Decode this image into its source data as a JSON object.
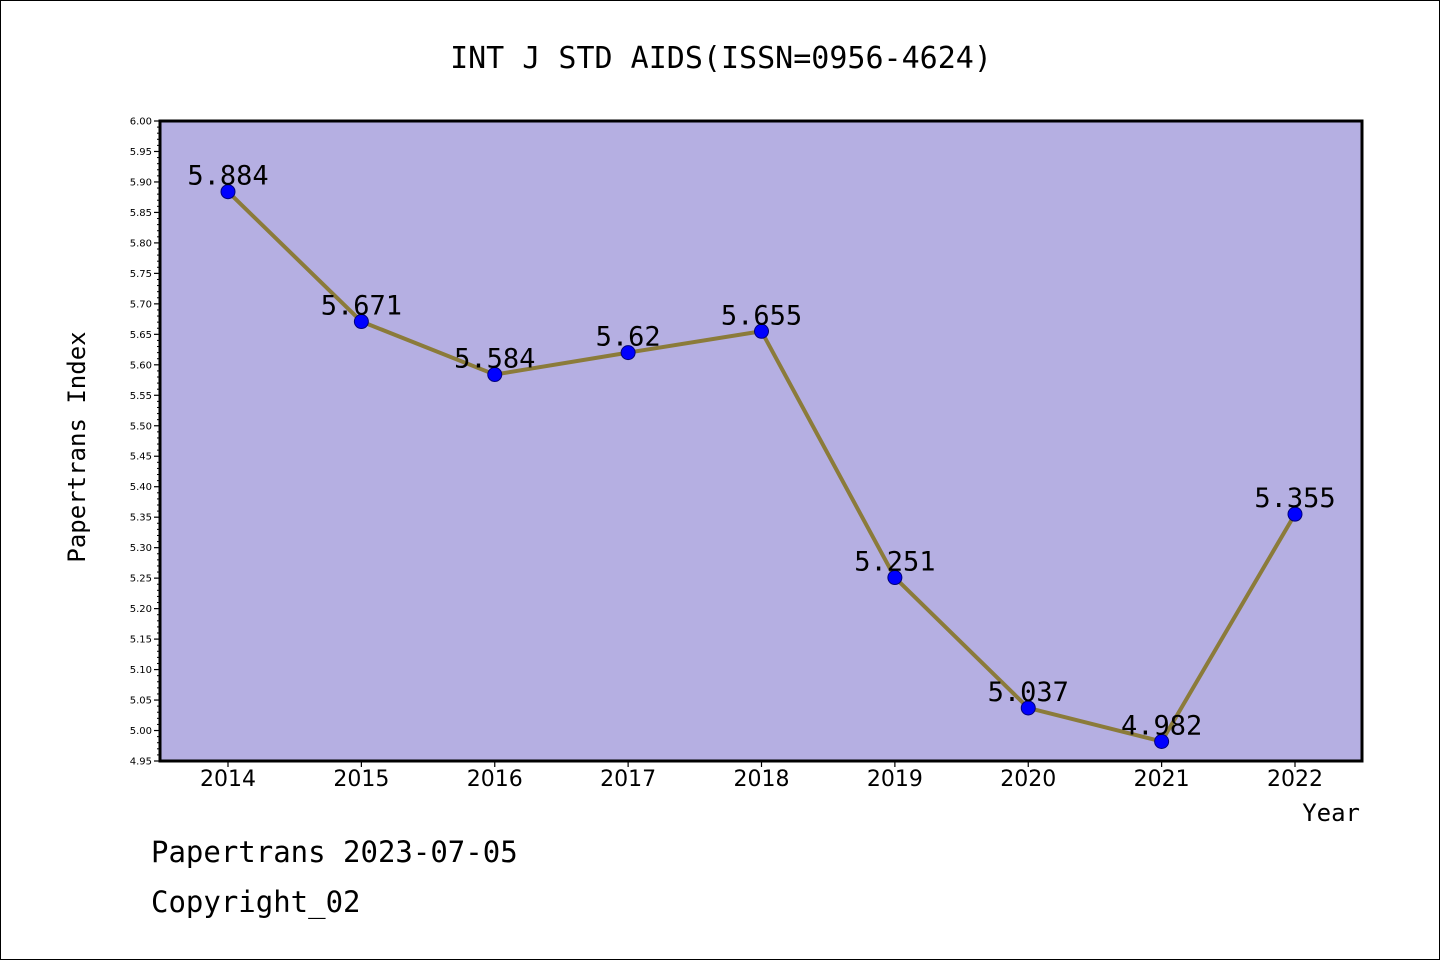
{
  "chart_data": {
    "type": "line",
    "title": "INT J STD AIDS(ISSN=0956-4624)",
    "xlabel": "Year",
    "ylabel": "Papertrans Index",
    "categories": [
      "2014",
      "2015",
      "2016",
      "2017",
      "2018",
      "2019",
      "2020",
      "2021",
      "2022"
    ],
    "series": [
      {
        "values": [
          5.884,
          5.671,
          5.584,
          5.62,
          5.655,
          5.251,
          5.037,
          4.982,
          5.355
        ],
        "labels": [
          "5.884",
          "5.671",
          "5.584",
          "5.62",
          "5.655",
          "5.251",
          "5.037",
          "4.982",
          "5.355"
        ]
      }
    ],
    "ylim": [
      4.95,
      6.0
    ],
    "yticks": [
      "4.95",
      "5.00",
      "5.05",
      "5.10",
      "5.15",
      "5.20",
      "5.25",
      "5.30",
      "5.35",
      "5.40",
      "5.45",
      "5.50",
      "5.55",
      "5.60",
      "5.65",
      "5.70",
      "5.75",
      "5.80",
      "5.85",
      "5.90",
      "5.95",
      "6.00"
    ],
    "grid": false,
    "colors": {
      "plot_background": "#b5afe2",
      "line": "#8b7b3a",
      "marker": "#0000ff"
    }
  },
  "footer": {
    "line1": "Papertrans 2023-07-05",
    "line2": "Copyright_02"
  }
}
